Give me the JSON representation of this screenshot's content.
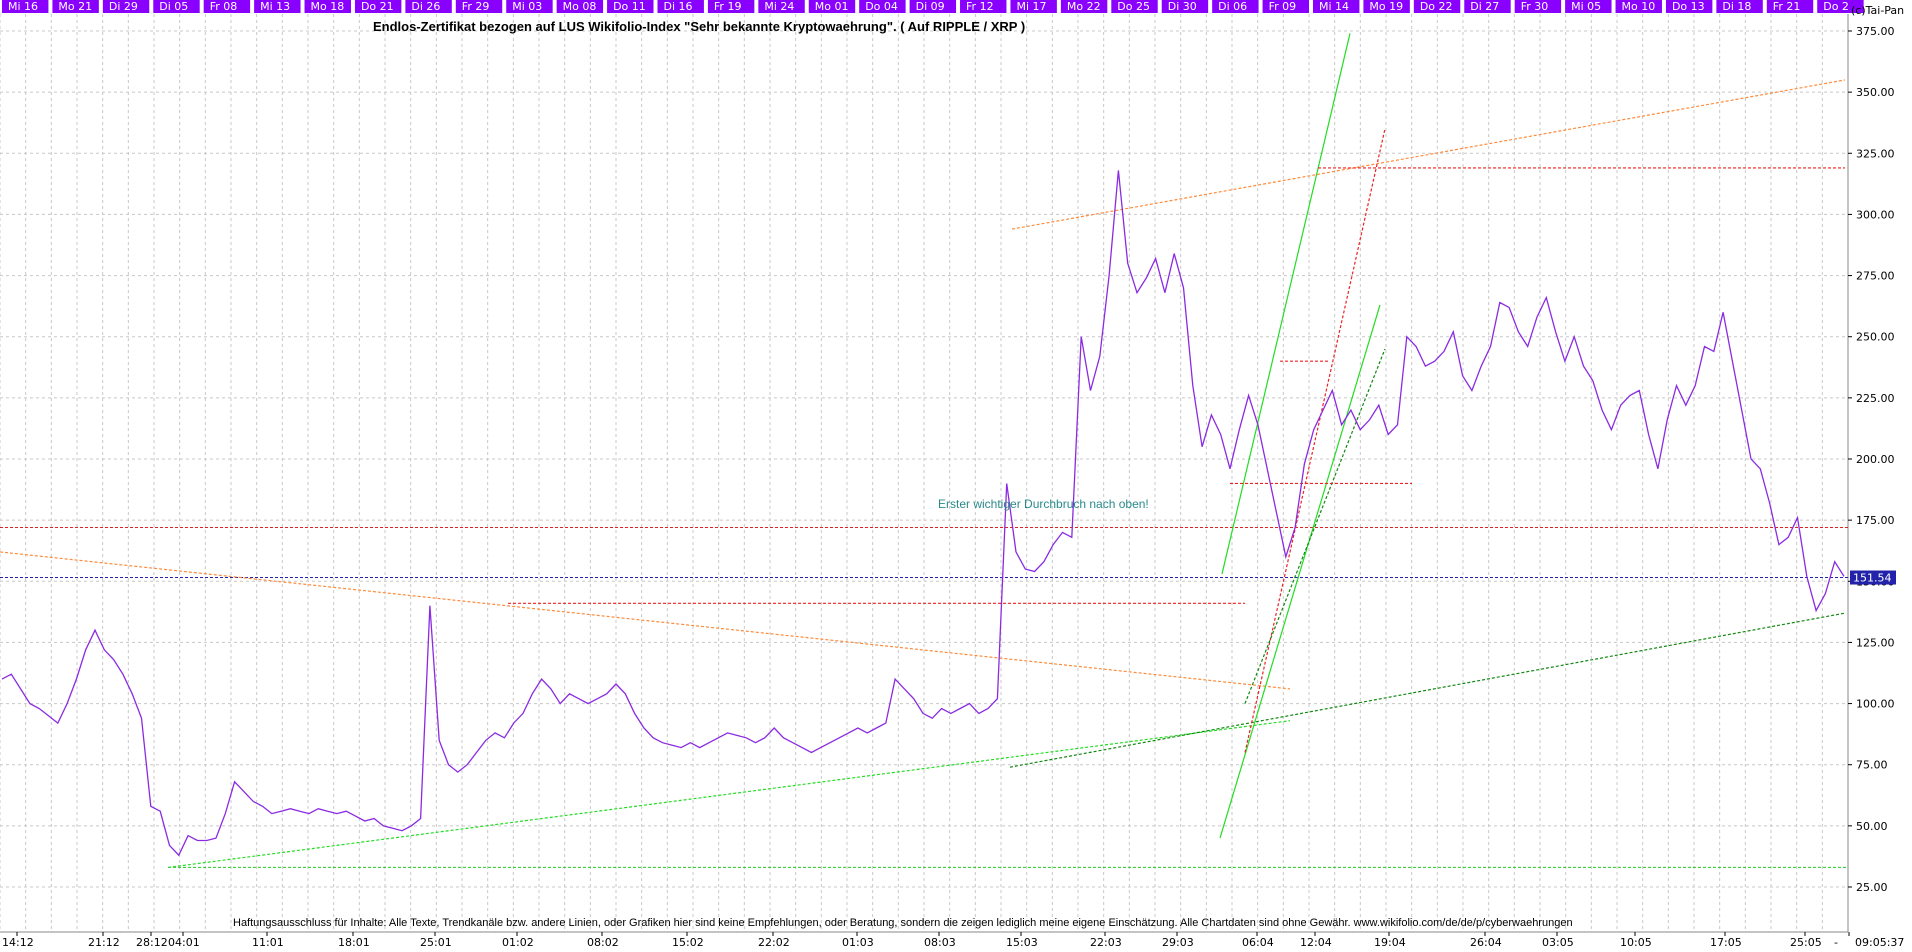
{
  "header": {
    "day_labels": [
      "Mi 16",
      "Mo 21",
      "Di 29",
      "Di 05",
      "Fr 08",
      "Mi 13",
      "Mo 18",
      "Do 21",
      "Di 26",
      "Fr 29",
      "Mi 03",
      "Mo 08",
      "Do 11",
      "Di 16",
      "Fr 19",
      "Mi 24",
      "Mo 01",
      "Do 04",
      "Di 09",
      "Fr 12",
      "Mi 17",
      "Mo 22",
      "Do 25",
      "Di 30",
      "Di 06",
      "Fr 09",
      "Mi 14",
      "Mo 19",
      "Do 22",
      "Di 27",
      "Fr 30",
      "Mi 05",
      "Mo 10",
      "Do 13",
      "Di 18",
      "Fr 21",
      "Do 2"
    ],
    "bar_color": "#8a00ff",
    "copyright": "(c)Tai-Pan"
  },
  "chart_data": {
    "type": "line",
    "title": "Endlos-Zertifikat bezogen auf LUS Wikifolio-Index \"Sehr bekannte Kryptowaehrung\". ( Auf RIPPLE / XRP )",
    "ylim": [
      25,
      375
    ],
    "y_ticks": [
      "25.00",
      "50.00",
      "75.00",
      "100.00",
      "125.00",
      "150.00",
      "175.00",
      "200.00",
      "225.00",
      "250.00",
      "275.00",
      "300.00",
      "325.00",
      "350.00",
      "375.00"
    ],
    "x_ticks": [
      "14:12",
      "21:12",
      "28:12",
      "04:01",
      "11:01",
      "18:01",
      "25:01",
      "01:02",
      "08:02",
      "15:02",
      "22:02",
      "01:03",
      "08:03",
      "15:03",
      "22:03",
      "29:03",
      "06:04",
      "12:04",
      "19:04",
      "26:04",
      "03:05",
      "10:05",
      "17:05",
      "25:05",
      "-"
    ],
    "grid": true,
    "series_color": "#8a2be2",
    "series": [
      {
        "values": [
          110,
          112,
          106,
          100,
          98,
          95,
          92,
          100,
          110,
          122,
          130,
          122,
          118,
          112,
          104,
          94,
          58,
          56,
          42,
          38,
          46,
          44,
          44,
          45,
          55,
          68,
          64,
          60,
          58,
          55,
          56,
          57,
          56,
          55,
          57,
          56,
          55,
          56,
          54,
          52,
          53,
          50,
          49,
          48,
          50,
          53,
          140,
          85,
          75,
          72,
          75,
          80,
          85,
          88,
          86,
          92,
          96,
          104,
          110,
          106,
          100,
          104,
          102,
          100,
          102,
          104,
          108,
          104,
          96,
          90,
          86,
          84,
          83,
          82,
          84,
          82,
          84,
          86,
          88,
          87,
          86,
          84,
          86,
          90,
          86,
          84,
          82,
          80,
          82,
          84,
          86,
          88,
          90,
          88,
          90,
          92,
          110,
          106,
          102,
          96,
          94,
          98,
          96,
          98,
          100,
          96,
          98,
          102,
          190,
          162,
          155,
          154,
          158,
          165,
          170,
          168,
          250,
          228,
          242,
          275,
          318,
          280,
          268,
          274,
          282,
          268,
          284,
          270,
          230,
          205,
          218,
          210,
          196,
          212,
          226,
          214,
          196,
          178,
          160,
          172,
          198,
          212,
          220,
          228,
          214,
          220,
          212,
          216,
          222,
          210,
          214,
          250,
          246,
          238,
          240,
          244,
          252,
          234,
          228,
          238,
          246,
          264,
          262,
          252,
          246,
          258,
          266,
          252,
          240,
          250,
          238,
          232,
          220,
          212,
          222,
          226,
          228,
          210,
          196,
          216,
          230,
          222,
          230,
          246,
          244,
          260,
          240,
          220,
          200,
          196,
          182,
          165,
          168,
          176,
          152,
          138,
          145,
          158,
          152
        ]
      }
    ],
    "current_price": "151.54",
    "annotations": {
      "note": "Erster wichtiger Durchbruch nach oben!",
      "disclaimer": "Haftungsausschluss für Inhalte: Alle Texte, Trendkanäle bzw. andere Linien, oder Grafiken hier sind keine Empfehlungen, oder Beratung, sondern die zeigen lediglich meine eigene Einschätzung. Alle Chartdaten sind ohne Gewähr.  www.wikifolio.com/de/de/p/cyberwaehrungen",
      "timestamp": "09:05:37"
    },
    "level_lines": [
      {
        "value": 172,
        "color": "#dd2222"
      },
      {
        "value": 151.54,
        "color": "#2222aa"
      },
      {
        "value": 33,
        "color": "#22cc22"
      }
    ]
  }
}
